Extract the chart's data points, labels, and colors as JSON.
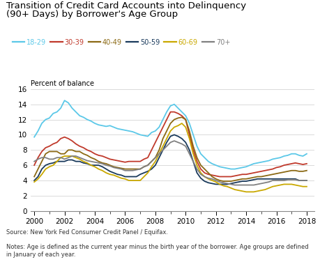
{
  "title_line1": "Transition of Credit Card Accounts into Delinquency",
  "title_line2": "(90+ Days) by Borrower's Age Group",
  "ylabel": "Percent of balance",
  "source": "Source: New York Fed Consumer Credit Panel / Equifax.",
  "notes": "Notes: Age is defined as the current year minus the birth year of the borrower. Age groups are defined\nin January of each year.",
  "legend_labels": [
    "18-29",
    "30-39",
    "40-49",
    "50-59",
    "60-69",
    "70+"
  ],
  "colors": [
    "#5BC8E8",
    "#C0392B",
    "#8B6914",
    "#1A3A5C",
    "#C9A800",
    "#808080"
  ],
  "xlim": [
    1999.75,
    2018.5
  ],
  "ylim": [
    0,
    16
  ],
  "yticks": [
    0,
    2,
    4,
    6,
    8,
    10,
    12,
    14,
    16
  ],
  "xticks": [
    2000,
    2002,
    2004,
    2006,
    2008,
    2010,
    2012,
    2014,
    2016,
    2018
  ],
  "series": {
    "18-29": {
      "x": [
        2000.0,
        2000.25,
        2000.5,
        2000.75,
        2001.0,
        2001.25,
        2001.5,
        2001.75,
        2002.0,
        2002.25,
        2002.5,
        2002.75,
        2003.0,
        2003.25,
        2003.5,
        2003.75,
        2004.0,
        2004.25,
        2004.5,
        2004.75,
        2005.0,
        2005.25,
        2005.5,
        2005.75,
        2006.0,
        2006.25,
        2006.5,
        2006.75,
        2007.0,
        2007.25,
        2007.5,
        2007.75,
        2008.0,
        2008.25,
        2008.5,
        2008.75,
        2009.0,
        2009.25,
        2009.5,
        2009.75,
        2010.0,
        2010.25,
        2010.5,
        2010.75,
        2011.0,
        2011.25,
        2011.5,
        2011.75,
        2012.0,
        2012.25,
        2012.5,
        2012.75,
        2013.0,
        2013.25,
        2013.5,
        2013.75,
        2014.0,
        2014.25,
        2014.5,
        2014.75,
        2015.0,
        2015.25,
        2015.5,
        2015.75,
        2016.0,
        2016.25,
        2016.5,
        2016.75,
        2017.0,
        2017.25,
        2017.5,
        2017.75,
        2018.0
      ],
      "y": [
        9.7,
        10.5,
        11.5,
        12.0,
        12.2,
        12.8,
        13.0,
        13.5,
        14.5,
        14.2,
        13.5,
        13.0,
        12.5,
        12.3,
        12.0,
        11.8,
        11.5,
        11.3,
        11.2,
        11.1,
        11.2,
        11.0,
        10.8,
        10.7,
        10.6,
        10.5,
        10.4,
        10.2,
        10.0,
        9.9,
        9.8,
        10.3,
        10.5,
        11.0,
        12.0,
        13.0,
        13.8,
        14.0,
        13.5,
        13.0,
        12.5,
        11.5,
        10.0,
        8.5,
        7.5,
        7.0,
        6.5,
        6.2,
        6.0,
        5.8,
        5.7,
        5.6,
        5.5,
        5.5,
        5.6,
        5.7,
        5.8,
        6.0,
        6.2,
        6.3,
        6.4,
        6.5,
        6.6,
        6.8,
        6.9,
        7.0,
        7.2,
        7.3,
        7.5,
        7.5,
        7.3,
        7.2,
        7.5
      ]
    },
    "30-39": {
      "x": [
        2000.0,
        2000.25,
        2000.5,
        2000.75,
        2001.0,
        2001.25,
        2001.5,
        2001.75,
        2002.0,
        2002.25,
        2002.5,
        2002.75,
        2003.0,
        2003.25,
        2003.5,
        2003.75,
        2004.0,
        2004.25,
        2004.5,
        2004.75,
        2005.0,
        2005.25,
        2005.5,
        2005.75,
        2006.0,
        2006.25,
        2006.5,
        2006.75,
        2007.0,
        2007.25,
        2007.5,
        2007.75,
        2008.0,
        2008.25,
        2008.5,
        2008.75,
        2009.0,
        2009.25,
        2009.5,
        2009.75,
        2010.0,
        2010.25,
        2010.5,
        2010.75,
        2011.0,
        2011.25,
        2011.5,
        2011.75,
        2012.0,
        2012.25,
        2012.5,
        2012.75,
        2013.0,
        2013.25,
        2013.5,
        2013.75,
        2014.0,
        2014.25,
        2014.5,
        2014.75,
        2015.0,
        2015.25,
        2015.5,
        2015.75,
        2016.0,
        2016.25,
        2016.5,
        2016.75,
        2017.0,
        2017.25,
        2017.5,
        2017.75,
        2018.0
      ],
      "y": [
        6.0,
        7.0,
        7.8,
        8.3,
        8.5,
        8.8,
        9.0,
        9.5,
        9.7,
        9.5,
        9.2,
        8.8,
        8.5,
        8.3,
        8.0,
        7.8,
        7.5,
        7.3,
        7.2,
        7.0,
        6.8,
        6.7,
        6.6,
        6.5,
        6.4,
        6.5,
        6.5,
        6.5,
        6.5,
        6.8,
        7.0,
        8.0,
        9.0,
        10.0,
        11.0,
        12.0,
        13.0,
        13.0,
        12.8,
        12.5,
        12.0,
        10.0,
        8.0,
        6.5,
        5.5,
        5.0,
        4.8,
        4.7,
        4.6,
        4.5,
        4.5,
        4.5,
        4.5,
        4.6,
        4.7,
        4.8,
        4.8,
        4.9,
        5.0,
        5.1,
        5.2,
        5.3,
        5.4,
        5.5,
        5.7,
        5.8,
        6.0,
        6.1,
        6.2,
        6.3,
        6.2,
        6.1,
        6.2
      ]
    },
    "40-49": {
      "x": [
        2000.0,
        2000.25,
        2000.5,
        2000.75,
        2001.0,
        2001.25,
        2001.5,
        2001.75,
        2002.0,
        2002.25,
        2002.5,
        2002.75,
        2003.0,
        2003.25,
        2003.5,
        2003.75,
        2004.0,
        2004.25,
        2004.5,
        2004.75,
        2005.0,
        2005.25,
        2005.5,
        2005.75,
        2006.0,
        2006.25,
        2006.5,
        2006.75,
        2007.0,
        2007.25,
        2007.5,
        2007.75,
        2008.0,
        2008.25,
        2008.5,
        2008.75,
        2009.0,
        2009.25,
        2009.5,
        2009.75,
        2010.0,
        2010.25,
        2010.5,
        2010.75,
        2011.0,
        2011.25,
        2011.5,
        2011.75,
        2012.0,
        2012.25,
        2012.5,
        2012.75,
        2013.0,
        2013.25,
        2013.5,
        2013.75,
        2014.0,
        2014.25,
        2014.5,
        2014.75,
        2015.0,
        2015.25,
        2015.5,
        2015.75,
        2016.0,
        2016.25,
        2016.5,
        2016.75,
        2017.0,
        2017.25,
        2017.5,
        2017.75,
        2018.0
      ],
      "y": [
        4.5,
        5.5,
        6.5,
        7.5,
        7.8,
        7.8,
        7.8,
        7.5,
        7.5,
        8.0,
        8.0,
        7.8,
        7.8,
        7.5,
        7.3,
        7.0,
        6.8,
        6.5,
        6.3,
        6.2,
        6.0,
        5.8,
        5.7,
        5.6,
        5.5,
        5.5,
        5.5,
        5.5,
        5.5,
        5.8,
        6.0,
        6.5,
        7.0,
        8.0,
        9.5,
        10.5,
        11.5,
        12.0,
        12.2,
        12.3,
        12.0,
        10.5,
        8.5,
        7.0,
        6.0,
        5.5,
        5.0,
        4.5,
        4.2,
        4.0,
        3.9,
        3.9,
        3.9,
        4.0,
        4.1,
        4.2,
        4.2,
        4.3,
        4.4,
        4.5,
        4.5,
        4.6,
        4.7,
        4.8,
        4.9,
        5.0,
        5.1,
        5.2,
        5.3,
        5.3,
        5.2,
        5.2,
        5.3
      ]
    },
    "50-59": {
      "x": [
        2000.0,
        2000.25,
        2000.5,
        2000.75,
        2001.0,
        2001.25,
        2001.5,
        2001.75,
        2002.0,
        2002.25,
        2002.5,
        2002.75,
        2003.0,
        2003.25,
        2003.5,
        2003.75,
        2004.0,
        2004.25,
        2004.5,
        2004.75,
        2005.0,
        2005.25,
        2005.5,
        2005.75,
        2006.0,
        2006.25,
        2006.5,
        2006.75,
        2007.0,
        2007.25,
        2007.5,
        2007.75,
        2008.0,
        2008.25,
        2008.5,
        2008.75,
        2009.0,
        2009.25,
        2009.5,
        2009.75,
        2010.0,
        2010.25,
        2010.5,
        2010.75,
        2011.0,
        2011.25,
        2011.5,
        2011.75,
        2012.0,
        2012.25,
        2012.5,
        2012.75,
        2013.0,
        2013.25,
        2013.5,
        2013.75,
        2014.0,
        2014.25,
        2014.5,
        2014.75,
        2015.0,
        2015.25,
        2015.5,
        2015.75,
        2016.0,
        2016.25,
        2016.5,
        2016.75,
        2017.0,
        2017.25,
        2017.5,
        2017.75,
        2018.0
      ],
      "y": [
        4.0,
        4.5,
        5.5,
        6.0,
        6.2,
        6.3,
        6.5,
        6.5,
        6.5,
        6.7,
        6.7,
        6.5,
        6.5,
        6.3,
        6.2,
        6.0,
        6.0,
        6.0,
        5.8,
        5.5,
        5.2,
        5.0,
        4.8,
        4.7,
        4.5,
        4.5,
        4.5,
        4.5,
        4.8,
        5.0,
        5.2,
        5.5,
        6.0,
        7.0,
        8.0,
        9.0,
        9.8,
        10.0,
        9.8,
        9.5,
        9.0,
        8.0,
        6.5,
        5.0,
        4.3,
        3.9,
        3.7,
        3.6,
        3.5,
        3.5,
        3.5,
        3.5,
        3.6,
        3.7,
        3.8,
        3.9,
        3.9,
        4.0,
        4.1,
        4.2,
        4.2,
        4.2,
        4.2,
        4.2,
        4.2,
        4.2,
        4.2,
        4.2,
        4.2,
        4.2,
        4.0,
        4.0,
        4.0
      ]
    },
    "60-69": {
      "x": [
        2000.0,
        2000.25,
        2000.5,
        2000.75,
        2001.0,
        2001.25,
        2001.5,
        2001.75,
        2002.0,
        2002.25,
        2002.5,
        2002.75,
        2003.0,
        2003.25,
        2003.5,
        2003.75,
        2004.0,
        2004.25,
        2004.5,
        2004.75,
        2005.0,
        2005.25,
        2005.5,
        2005.75,
        2006.0,
        2006.25,
        2006.5,
        2006.75,
        2007.0,
        2007.25,
        2007.5,
        2007.75,
        2008.0,
        2008.25,
        2008.5,
        2008.75,
        2009.0,
        2009.25,
        2009.5,
        2009.75,
        2010.0,
        2010.25,
        2010.5,
        2010.75,
        2011.0,
        2011.25,
        2011.5,
        2011.75,
        2012.0,
        2012.25,
        2012.5,
        2012.75,
        2013.0,
        2013.25,
        2013.5,
        2013.75,
        2014.0,
        2014.25,
        2014.5,
        2014.75,
        2015.0,
        2015.25,
        2015.5,
        2015.75,
        2016.0,
        2016.25,
        2016.5,
        2016.75,
        2017.0,
        2017.25,
        2017.5,
        2017.75,
        2018.0
      ],
      "y": [
        3.8,
        4.2,
        4.8,
        5.5,
        5.8,
        6.0,
        6.5,
        7.0,
        7.2,
        7.2,
        7.2,
        7.0,
        6.8,
        6.5,
        6.3,
        6.0,
        5.8,
        5.5,
        5.3,
        5.0,
        4.8,
        4.7,
        4.5,
        4.3,
        4.2,
        4.0,
        4.0,
        4.0,
        4.0,
        4.5,
        5.0,
        5.8,
        6.5,
        7.5,
        8.5,
        9.5,
        10.5,
        11.0,
        11.2,
        11.5,
        11.0,
        9.5,
        7.5,
        6.0,
        5.0,
        4.5,
        4.2,
        4.0,
        3.8,
        3.5,
        3.3,
        3.2,
        3.0,
        2.8,
        2.7,
        2.6,
        2.5,
        2.5,
        2.5,
        2.6,
        2.7,
        2.8,
        3.0,
        3.2,
        3.3,
        3.4,
        3.5,
        3.5,
        3.5,
        3.4,
        3.3,
        3.2,
        3.2
      ]
    },
    "70+": {
      "x": [
        2000.0,
        2000.25,
        2000.5,
        2000.75,
        2001.0,
        2001.25,
        2001.5,
        2001.75,
        2002.0,
        2002.25,
        2002.5,
        2002.75,
        2003.0,
        2003.25,
        2003.5,
        2003.75,
        2004.0,
        2004.25,
        2004.5,
        2004.75,
        2005.0,
        2005.25,
        2005.5,
        2005.75,
        2006.0,
        2006.25,
        2006.5,
        2006.75,
        2007.0,
        2007.25,
        2007.5,
        2007.75,
        2008.0,
        2008.25,
        2008.5,
        2008.75,
        2009.0,
        2009.25,
        2009.5,
        2009.75,
        2010.0,
        2010.25,
        2010.5,
        2010.75,
        2011.0,
        2011.25,
        2011.5,
        2011.75,
        2012.0,
        2012.25,
        2012.5,
        2012.75,
        2013.0,
        2013.25,
        2013.5,
        2013.75,
        2014.0,
        2014.25,
        2014.5,
        2014.75,
        2015.0,
        2015.25,
        2015.5,
        2015.75,
        2016.0,
        2016.25,
        2016.5,
        2016.75,
        2017.0,
        2017.25,
        2017.5,
        2017.75,
        2018.0
      ],
      "y": [
        6.5,
        6.8,
        7.0,
        7.0,
        6.8,
        6.8,
        7.0,
        7.0,
        6.8,
        7.0,
        7.2,
        7.2,
        7.0,
        6.8,
        6.6,
        6.5,
        6.4,
        6.3,
        6.2,
        6.0,
        5.9,
        5.7,
        5.6,
        5.5,
        5.3,
        5.3,
        5.3,
        5.4,
        5.5,
        5.8,
        6.0,
        6.5,
        7.0,
        7.5,
        8.0,
        8.5,
        9.0,
        9.2,
        9.0,
        8.8,
        8.5,
        7.5,
        6.5,
        5.5,
        4.8,
        4.5,
        4.3,
        4.2,
        4.0,
        3.8,
        3.7,
        3.6,
        3.5,
        3.4,
        3.4,
        3.4,
        3.4,
        3.4,
        3.4,
        3.5,
        3.6,
        3.7,
        3.8,
        4.0,
        4.0,
        4.0,
        4.0,
        4.1,
        4.1,
        4.1,
        4.0,
        4.0,
        4.0
      ]
    }
  }
}
